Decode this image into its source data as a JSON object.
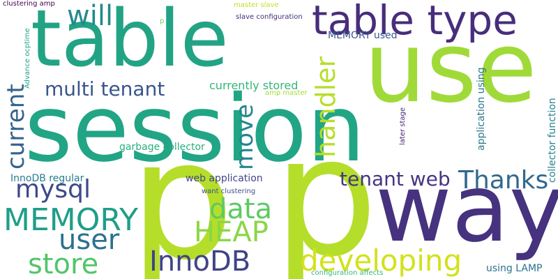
{
  "words": [
    {
      "text": "session",
      "color": "#21a585"
    },
    {
      "text": "table",
      "color": "#22a384"
    },
    {
      "text": "use",
      "color": "#a0da39"
    },
    {
      "text": "p",
      "color": "#b5de2b"
    },
    {
      "text": "p",
      "color": "#b5de2b"
    },
    {
      "text": "way",
      "color": "#46327e"
    },
    {
      "text": "table type",
      "color": "#472d7b"
    },
    {
      "text": "will",
      "color": "#238a8d"
    },
    {
      "text": "current",
      "color": "#33638d"
    },
    {
      "text": "multi tenant",
      "color": "#39558c"
    },
    {
      "text": "handler",
      "color": "#b8de29"
    },
    {
      "text": "move",
      "color": "#24868e"
    },
    {
      "text": "mysql",
      "color": "#3e4989"
    },
    {
      "text": "MEMORY",
      "color": "#1f9e89"
    },
    {
      "text": "user",
      "color": "#2c718e"
    },
    {
      "text": "store",
      "color": "#52c569"
    },
    {
      "text": "data",
      "color": "#5ec962"
    },
    {
      "text": "HEAP",
      "color": "#8bd646"
    },
    {
      "text": "InnoDB",
      "color": "#404387"
    },
    {
      "text": "developing",
      "color": "#d2e21b"
    },
    {
      "text": "tenant web",
      "color": "#453581"
    },
    {
      "text": "Thanks",
      "color": "#31688e"
    },
    {
      "text": "MEMORY used",
      "color": "#39568c"
    },
    {
      "text": "currently stored",
      "color": "#34b679"
    },
    {
      "text": "garbage collector",
      "color": "#29af7f"
    },
    {
      "text": "web application",
      "color": "#3f4788"
    },
    {
      "text": "InnoDB regular",
      "color": "#287c8e"
    },
    {
      "text": "want clustering",
      "color": "#3d4e8a"
    },
    {
      "text": "application using",
      "color": "#2a768e"
    },
    {
      "text": "collector function",
      "color": "#26828e"
    },
    {
      "text": "later stage",
      "color": "#482575"
    },
    {
      "text": "using LAMP",
      "color": "#2c728e"
    },
    {
      "text": "configuration affects",
      "color": "#35b779"
    },
    {
      "text": "clustering amp",
      "color": "#440154"
    },
    {
      "text": "Advance ocptime",
      "color": "#20a386"
    },
    {
      "text": "master slave",
      "color": "#c0df25"
    },
    {
      "text": "slave configuration",
      "color": "#472c7a"
    },
    {
      "text": "amp master",
      "color": "#a5db36"
    },
    {
      "text": "p",
      "color": "#6ccd5a"
    }
  ]
}
